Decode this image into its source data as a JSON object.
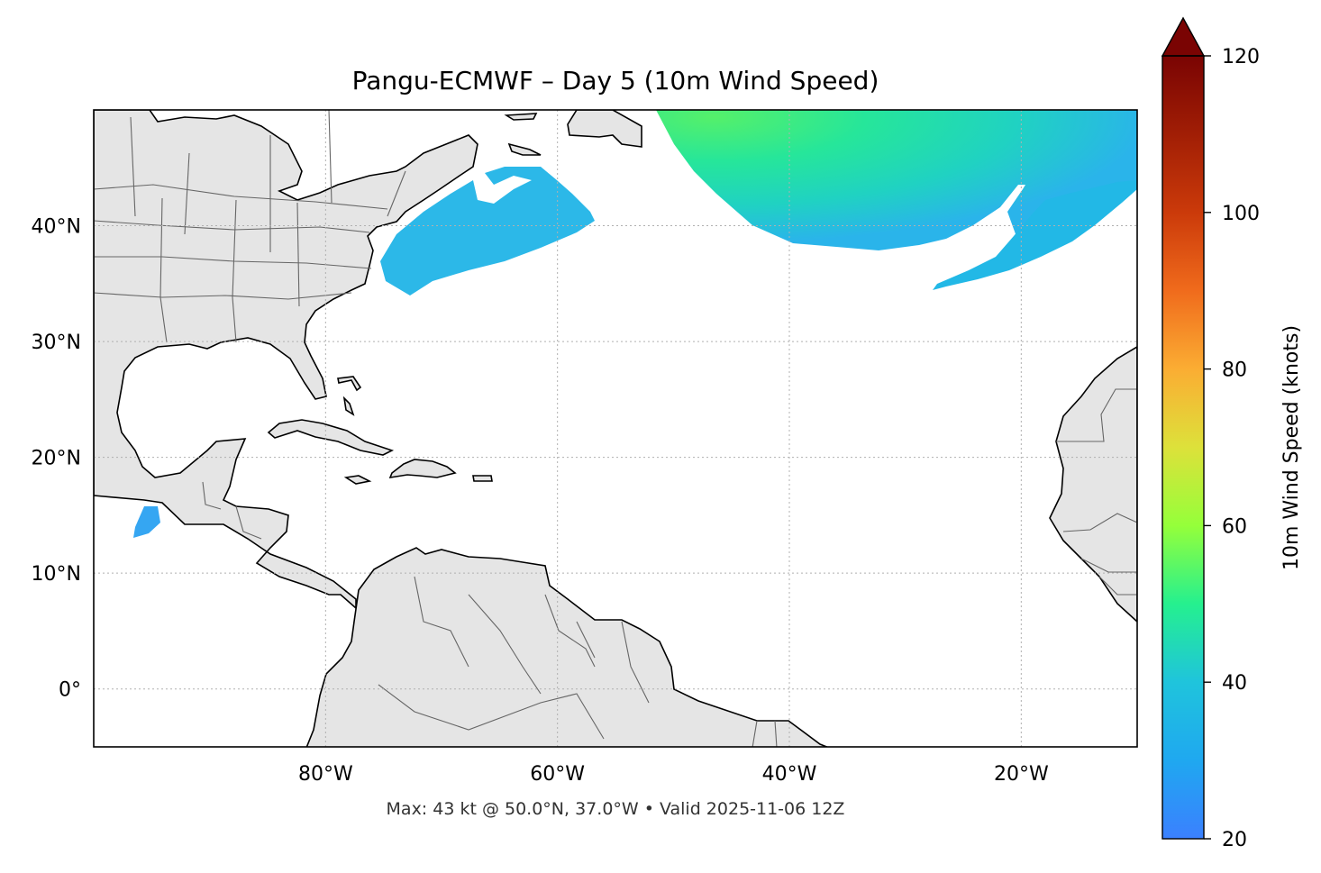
{
  "title": "Pangu-ECMWF – Day 5 (10m Wind Speed)",
  "footer": "Max: 43 kt @ 50.0°N, 37.0°W • Valid 2025-11-06 12Z",
  "map": {
    "lon_range": [
      -100,
      -10
    ],
    "lat_range": [
      -5,
      50
    ],
    "lat_ticks": [
      {
        "value": 40,
        "label": "40°N"
      },
      {
        "value": 30,
        "label": "30°N"
      },
      {
        "value": 20,
        "label": "20°N"
      },
      {
        "value": 10,
        "label": "10°N"
      },
      {
        "value": 0,
        "label": "0°"
      }
    ],
    "lon_ticks": [
      {
        "value": -80,
        "label": "80°W"
      },
      {
        "value": -60,
        "label": "60°W"
      },
      {
        "value": -40,
        "label": "40°W"
      },
      {
        "value": -20,
        "label": "20°W"
      }
    ],
    "gridlines": true,
    "land_color": "#e5e5e5",
    "coastline_color": "#000000",
    "border_color": "#666666"
  },
  "colorbar": {
    "label": "10m Wind Speed (knots)",
    "min": 20,
    "max": 120,
    "extend": "max",
    "colormap": "turbo",
    "ticks": [
      {
        "value": 20,
        "label": "20"
      },
      {
        "value": 40,
        "label": "40"
      },
      {
        "value": 60,
        "label": "60"
      },
      {
        "value": 80,
        "label": "80"
      },
      {
        "value": 100,
        "label": "100"
      },
      {
        "value": 120,
        "label": "120"
      }
    ],
    "stops": [
      "#3b80ff",
      "#1fc4dc",
      "#25f08f",
      "#95ff3a",
      "#dde13a",
      "#fbad33",
      "#f06b1c",
      "#cb3a0a",
      "#8e1405",
      "#7a0403"
    ]
  },
  "wind_max": {
    "speed_kt": 43,
    "lat": 50.0,
    "lon": -37.0
  }
}
